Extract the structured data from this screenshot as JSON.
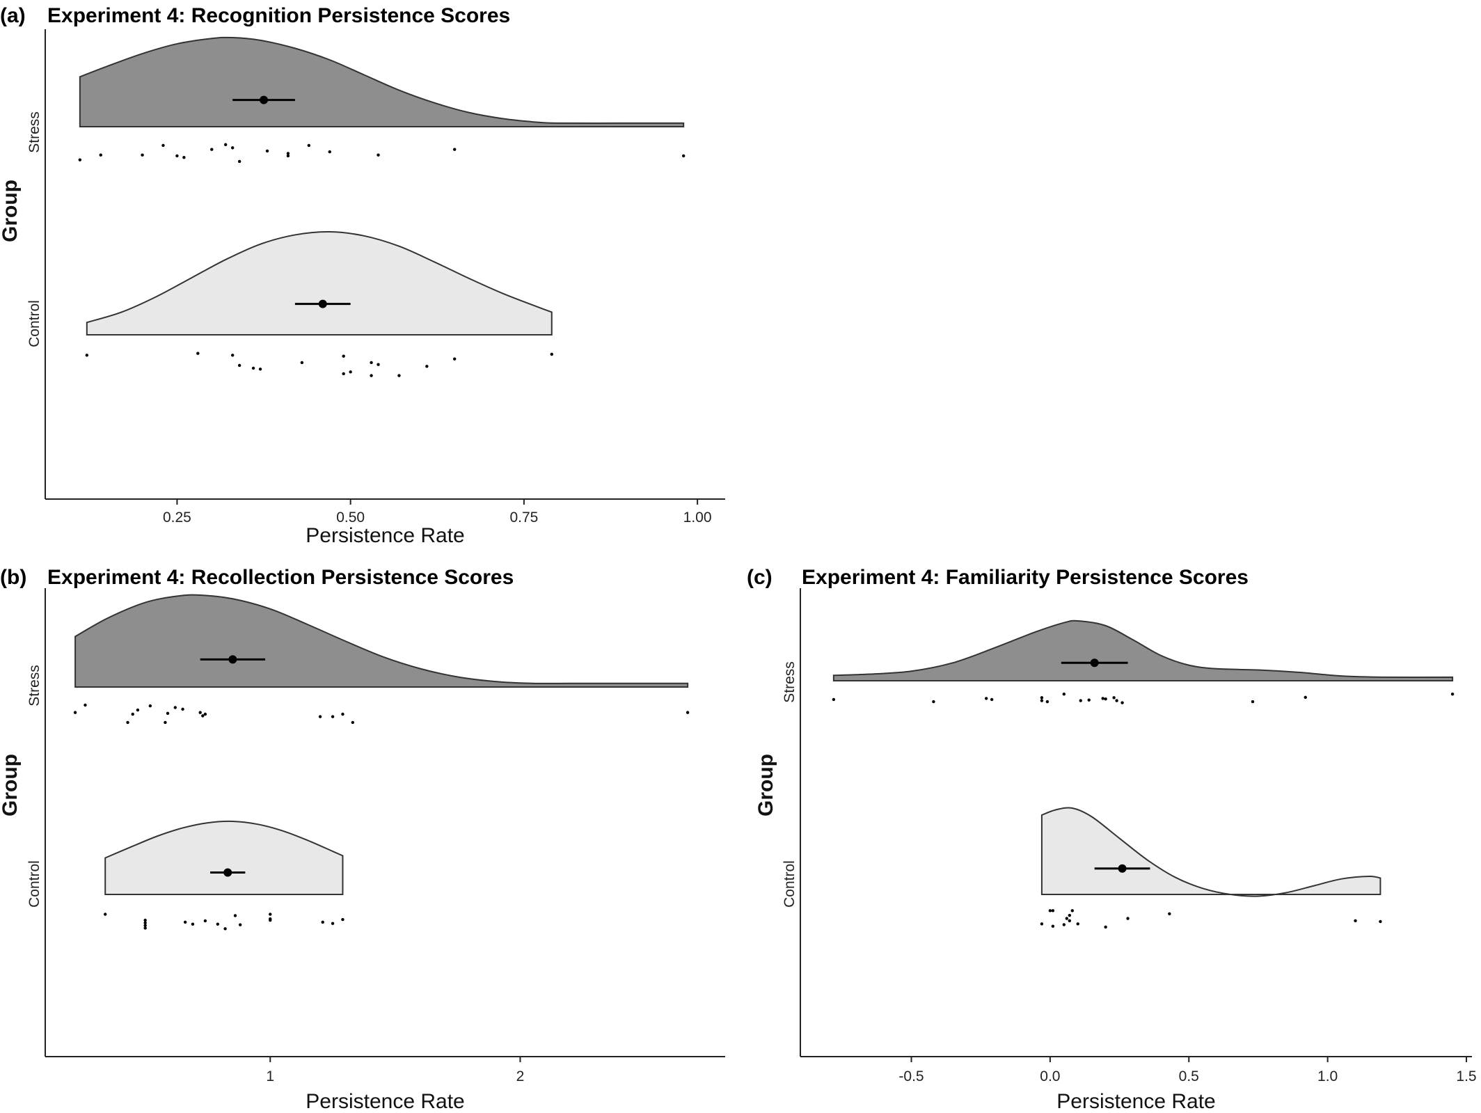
{
  "colors": {
    "stress_fill": "#8e8e8e",
    "control_fill": "#e8e8e8",
    "outline": "#333333",
    "point": "#000000"
  },
  "chart_data": [
    {
      "id": "a",
      "panel_label": "(a)",
      "type": "raincloud",
      "title": "Experiment 4: Recognition Persistence Scores",
      "xlabel": "Persistence Rate",
      "ylabel": "Group",
      "xlim": [
        0.06,
        1.04
      ],
      "xticks": [
        0.25,
        0.5,
        0.75,
        1.0
      ],
      "xtick_labels": [
        "0.25",
        "0.50",
        "0.75",
        "1.00"
      ],
      "groups": [
        {
          "name": "Stress",
          "density": [
            [
              0.11,
              0.56
            ],
            [
              0.15,
              0.68
            ],
            [
              0.2,
              0.82
            ],
            [
              0.25,
              0.93
            ],
            [
              0.3,
              0.99
            ],
            [
              0.33,
              1.0
            ],
            [
              0.37,
              0.97
            ],
            [
              0.42,
              0.88
            ],
            [
              0.47,
              0.75
            ],
            [
              0.52,
              0.58
            ],
            [
              0.57,
              0.41
            ],
            [
              0.62,
              0.27
            ],
            [
              0.67,
              0.16
            ],
            [
              0.72,
              0.09
            ],
            [
              0.77,
              0.05
            ],
            [
              0.8,
              0.04
            ],
            [
              0.9,
              0.04
            ],
            [
              0.98,
              0.04
            ]
          ],
          "mean": 0.375,
          "ci": [
            0.33,
            0.42
          ],
          "points": [
            [
              0.11,
              -1.2
            ],
            [
              0.14,
              -0.9
            ],
            [
              0.2,
              -0.9
            ],
            [
              0.23,
              -0.3
            ],
            [
              0.25,
              -0.95
            ],
            [
              0.26,
              -1.05
            ],
            [
              0.3,
              -0.55
            ],
            [
              0.32,
              -0.25
            ],
            [
              0.33,
              -0.45
            ],
            [
              0.34,
              -1.3
            ],
            [
              0.38,
              -0.65
            ],
            [
              0.41,
              -0.8
            ],
            [
              0.41,
              -0.95
            ],
            [
              0.44,
              -0.3
            ],
            [
              0.47,
              -0.7
            ],
            [
              0.54,
              -0.9
            ],
            [
              0.65,
              -0.55
            ],
            [
              0.98,
              -0.95
            ]
          ]
        },
        {
          "name": "Control",
          "density": [
            [
              0.12,
              0.12
            ],
            [
              0.17,
              0.22
            ],
            [
              0.22,
              0.37
            ],
            [
              0.27,
              0.55
            ],
            [
              0.32,
              0.73
            ],
            [
              0.37,
              0.88
            ],
            [
              0.42,
              0.97
            ],
            [
              0.47,
              1.0
            ],
            [
              0.52,
              0.96
            ],
            [
              0.57,
              0.86
            ],
            [
              0.62,
              0.71
            ],
            [
              0.67,
              0.55
            ],
            [
              0.72,
              0.4
            ],
            [
              0.77,
              0.27
            ],
            [
              0.79,
              0.22
            ]
          ],
          "mean": 0.46,
          "ci": [
            0.42,
            0.5
          ],
          "points": [
            [
              0.12,
              -0.35
            ],
            [
              0.28,
              -0.25
            ],
            [
              0.33,
              -0.35
            ],
            [
              0.34,
              -0.9
            ],
            [
              0.36,
              -1.05
            ],
            [
              0.37,
              -1.1
            ],
            [
              0.43,
              -0.75
            ],
            [
              0.49,
              -0.4
            ],
            [
              0.49,
              -1.35
            ],
            [
              0.5,
              -1.25
            ],
            [
              0.53,
              -0.75
            ],
            [
              0.53,
              -1.45
            ],
            [
              0.54,
              -0.85
            ],
            [
              0.57,
              -1.45
            ],
            [
              0.61,
              -0.95
            ],
            [
              0.65,
              -0.55
            ],
            [
              0.79,
              -0.3
            ]
          ]
        }
      ]
    },
    {
      "id": "b",
      "panel_label": "(b)",
      "type": "raincloud",
      "title": "Experiment 4: Recollection Persistence Scores",
      "xlabel": "Persistence Rate",
      "ylabel": "Group",
      "xlim": [
        0.1,
        2.82
      ],
      "xticks": [
        1,
        2
      ],
      "xtick_labels": [
        "1",
        "2"
      ],
      "groups": [
        {
          "name": "Stress",
          "density": [
            [
              0.22,
              0.55
            ],
            [
              0.35,
              0.75
            ],
            [
              0.5,
              0.92
            ],
            [
              0.63,
              0.99
            ],
            [
              0.72,
              1.0
            ],
            [
              0.85,
              0.96
            ],
            [
              1.0,
              0.85
            ],
            [
              1.15,
              0.68
            ],
            [
              1.3,
              0.5
            ],
            [
              1.45,
              0.33
            ],
            [
              1.6,
              0.2
            ],
            [
              1.75,
              0.11
            ],
            [
              1.9,
              0.06
            ],
            [
              2.05,
              0.04
            ],
            [
              2.2,
              0.04
            ],
            [
              2.4,
              0.04
            ],
            [
              2.67,
              0.04
            ]
          ],
          "mean": 0.85,
          "ci": [
            0.72,
            0.98
          ],
          "points": [
            [
              0.22,
              -0.7
            ],
            [
              0.26,
              -0.25
            ],
            [
              0.43,
              -1.3
            ],
            [
              0.45,
              -0.8
            ],
            [
              0.47,
              -0.55
            ],
            [
              0.52,
              -0.3
            ],
            [
              0.58,
              -1.3
            ],
            [
              0.59,
              -0.75
            ],
            [
              0.62,
              -0.4
            ],
            [
              0.65,
              -0.5
            ],
            [
              0.72,
              -0.7
            ],
            [
              0.73,
              -0.9
            ],
            [
              0.74,
              -0.8
            ],
            [
              1.2,
              -0.95
            ],
            [
              1.25,
              -0.95
            ],
            [
              1.29,
              -0.8
            ],
            [
              1.33,
              -1.3
            ],
            [
              2.67,
              -0.7
            ]
          ]
        },
        {
          "name": "Control",
          "density": [
            [
              0.34,
              0.5
            ],
            [
              0.45,
              0.66
            ],
            [
              0.55,
              0.8
            ],
            [
              0.65,
              0.91
            ],
            [
              0.75,
              0.98
            ],
            [
              0.85,
              1.0
            ],
            [
              0.95,
              0.96
            ],
            [
              1.05,
              0.87
            ],
            [
              1.15,
              0.74
            ],
            [
              1.25,
              0.59
            ],
            [
              1.29,
              0.53
            ]
          ],
          "mean": 0.83,
          "ci": [
            0.76,
            0.9
          ],
          "points": [
            [
              0.34,
              -0.45
            ],
            [
              0.5,
              -0.9
            ],
            [
              0.5,
              -1.1
            ],
            [
              0.5,
              -1.3
            ],
            [
              0.5,
              -1.5
            ],
            [
              0.66,
              -1.05
            ],
            [
              0.69,
              -1.2
            ],
            [
              0.74,
              -0.95
            ],
            [
              0.79,
              -1.2
            ],
            [
              0.82,
              -1.55
            ],
            [
              0.86,
              -0.55
            ],
            [
              0.88,
              -1.25
            ],
            [
              1.0,
              -0.45
            ],
            [
              1.0,
              -0.8
            ],
            [
              1.0,
              -0.9
            ],
            [
              1.21,
              -1.05
            ],
            [
              1.25,
              -1.15
            ],
            [
              1.29,
              -0.85
            ]
          ]
        }
      ]
    },
    {
      "id": "c",
      "panel_label": "(c)",
      "type": "raincloud",
      "title": "Experiment 4: Familiarity Persistence Scores",
      "xlabel": "Persistence Rate",
      "ylabel": "Group",
      "xlim": [
        -0.9,
        1.52
      ],
      "xticks": [
        -0.5,
        0.0,
        0.5,
        1.0,
        1.5
      ],
      "xtick_labels": [
        "-0.5",
        "0.0",
        "0.5",
        "1.0",
        "1.5"
      ],
      "groups": [
        {
          "name": "Stress",
          "density": [
            [
              -0.78,
              0.09
            ],
            [
              -0.65,
              0.11
            ],
            [
              -0.5,
              0.16
            ],
            [
              -0.35,
              0.3
            ],
            [
              -0.2,
              0.55
            ],
            [
              -0.05,
              0.82
            ],
            [
              0.05,
              0.97
            ],
            [
              0.1,
              1.0
            ],
            [
              0.2,
              0.92
            ],
            [
              0.3,
              0.68
            ],
            [
              0.4,
              0.42
            ],
            [
              0.5,
              0.26
            ],
            [
              0.6,
              0.2
            ],
            [
              0.75,
              0.18
            ],
            [
              0.9,
              0.14
            ],
            [
              1.05,
              0.08
            ],
            [
              1.2,
              0.06
            ],
            [
              1.45,
              0.06
            ]
          ],
          "mean": 0.16,
          "ci": [
            0.04,
            0.28
          ],
          "points": [
            [
              -0.78,
              -0.45
            ],
            [
              -0.42,
              -0.65
            ],
            [
              -0.23,
              -0.35
            ],
            [
              -0.21,
              -0.45
            ],
            [
              -0.03,
              -0.28
            ],
            [
              -0.03,
              -0.55
            ],
            [
              -0.01,
              -0.65
            ],
            [
              0.05,
              0.05
            ],
            [
              0.11,
              -0.55
            ],
            [
              0.14,
              -0.5
            ],
            [
              0.19,
              -0.35
            ],
            [
              0.2,
              -0.4
            ],
            [
              0.24,
              -0.55
            ],
            [
              0.23,
              -0.28
            ],
            [
              0.26,
              -0.75
            ],
            [
              0.73,
              -0.65
            ],
            [
              0.92,
              -0.25
            ],
            [
              1.45,
              0.05
            ]
          ]
        },
        {
          "name": "Control",
          "density": [
            [
              -0.03,
              0.92
            ],
            [
              0.02,
              0.98
            ],
            [
              0.08,
              1.0
            ],
            [
              0.15,
              0.9
            ],
            [
              0.25,
              0.65
            ],
            [
              0.35,
              0.4
            ],
            [
              0.45,
              0.2
            ],
            [
              0.55,
              0.07
            ],
            [
              0.65,
              0.0
            ],
            [
              0.75,
              -0.02
            ],
            [
              0.85,
              0.02
            ],
            [
              0.95,
              0.1
            ],
            [
              1.05,
              0.18
            ],
            [
              1.15,
              0.21
            ],
            [
              1.19,
              0.19
            ]
          ],
          "mean": 0.26,
          "ci": [
            0.16,
            0.36
          ],
          "points": [
            [
              -0.03,
              -1.0
            ],
            [
              0.0,
              -0.15
            ],
            [
              0.01,
              -0.15
            ],
            [
              0.01,
              -1.15
            ],
            [
              0.05,
              -1.05
            ],
            [
              0.06,
              -0.65
            ],
            [
              0.07,
              -0.45
            ],
            [
              0.07,
              -0.8
            ],
            [
              0.08,
              -0.15
            ],
            [
              0.1,
              -1.0
            ],
            [
              0.2,
              -1.2
            ],
            [
              0.28,
              -0.65
            ],
            [
              0.43,
              -0.35
            ],
            [
              1.1,
              -0.8
            ],
            [
              1.19,
              -0.85
            ]
          ]
        }
      ]
    }
  ]
}
